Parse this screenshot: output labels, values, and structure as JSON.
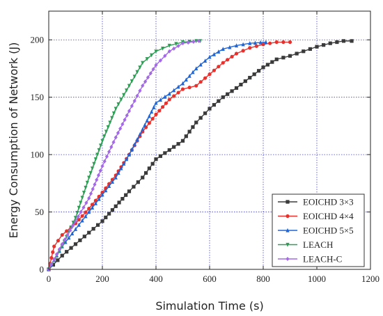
{
  "chart_data": {
    "type": "line",
    "title": "",
    "xlabel": "Simulation Time (s)",
    "ylabel": "Energy Consumption of Network (J)",
    "xlim": [
      0,
      1200
    ],
    "ylim": [
      0,
      225
    ],
    "xticks": [
      "0",
      "200",
      "400",
      "600",
      "800",
      "1000",
      "1200"
    ],
    "yticks": [
      "0",
      "50",
      "100",
      "150",
      "200"
    ],
    "grid": true,
    "legend_position": "bottom-right",
    "series": [
      {
        "name": "EOICHD 3×3",
        "color": "#3a3a3a",
        "marker": "square",
        "x": [
          0,
          50,
          100,
          150,
          200,
          250,
          300,
          350,
          400,
          450,
          500,
          550,
          600,
          650,
          700,
          750,
          800,
          850,
          900,
          950,
          1000,
          1050,
          1100,
          1130
        ],
        "y": [
          0,
          12,
          22,
          32,
          42,
          55,
          68,
          80,
          96,
          104,
          112,
          128,
          140,
          150,
          158,
          167,
          176,
          183,
          186,
          190,
          194,
          197,
          199,
          199
        ]
      },
      {
        "name": "EOICHD 4×4",
        "color": "#e8312c",
        "marker": "circle",
        "x": [
          0,
          20,
          50,
          100,
          150,
          200,
          250,
          300,
          350,
          400,
          450,
          500,
          550,
          600,
          650,
          700,
          750,
          800,
          850,
          900
        ],
        "y": [
          0,
          20,
          30,
          40,
          53,
          67,
          82,
          100,
          120,
          135,
          148,
          157,
          160,
          170,
          180,
          188,
          193,
          196,
          198,
          198
        ]
      },
      {
        "name": "EOICHD 5×5",
        "color": "#1f65d6",
        "marker": "triangle-up",
        "x": [
          0,
          50,
          100,
          150,
          200,
          250,
          300,
          350,
          400,
          450,
          500,
          550,
          600,
          650,
          700,
          750,
          810
        ],
        "y": [
          0,
          20,
          35,
          50,
          65,
          80,
          100,
          122,
          145,
          153,
          162,
          175,
          185,
          192,
          195,
          197,
          198
        ]
      },
      {
        "name": "LEACH",
        "color": "#2e9e55",
        "marker": "triangle-down",
        "x": [
          0,
          50,
          100,
          150,
          200,
          250,
          300,
          350,
          400,
          450,
          500,
          550,
          565
        ],
        "y": [
          0,
          20,
          45,
          80,
          112,
          140,
          160,
          180,
          190,
          195,
          198,
          199,
          199
        ]
      },
      {
        "name": "LEACH-C",
        "color": "#a469e6",
        "marker": "diamond",
        "x": [
          0,
          50,
          100,
          150,
          200,
          250,
          300,
          350,
          400,
          450,
          500,
          560
        ],
        "y": [
          0,
          22,
          42,
          62,
          90,
          115,
          138,
          160,
          178,
          190,
          197,
          199
        ]
      }
    ]
  }
}
